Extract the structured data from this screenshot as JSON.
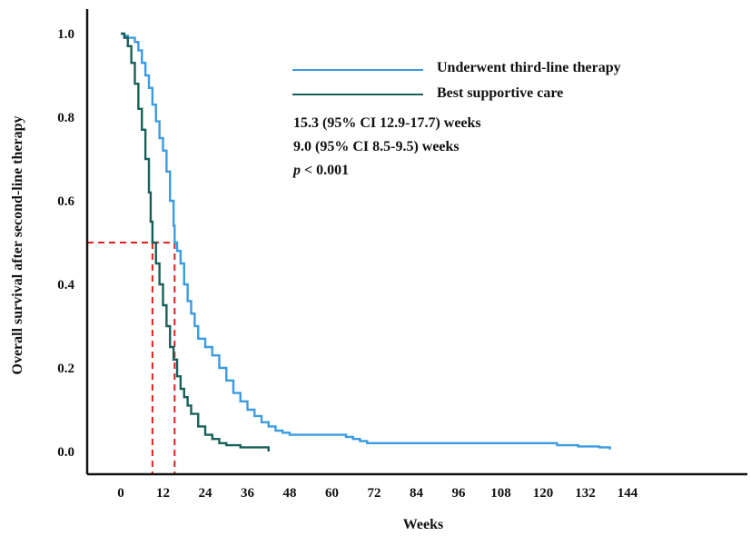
{
  "chart_data": {
    "type": "line",
    "title": "",
    "xlabel": "Weeks",
    "ylabel": "Overall survival after second-line therapy",
    "xlim": [
      -6,
      146
    ],
    "ylim": [
      0,
      1.0
    ],
    "x_ticks": [
      0,
      12,
      24,
      36,
      48,
      60,
      72,
      84,
      96,
      108,
      120,
      132,
      144
    ],
    "y_ticks": [
      0.0,
      0.2,
      0.4,
      0.6,
      0.8,
      1.0
    ],
    "x_tick_labels": [
      "0",
      "12",
      "24",
      "36",
      "48",
      "60",
      "72",
      "84",
      "96",
      "108",
      "120",
      "132",
      "144"
    ],
    "y_tick_labels": [
      "0.0",
      "0.2",
      "0.4",
      "0.6",
      "0.8",
      "1.0"
    ],
    "legend_position": "top-right",
    "series": [
      {
        "name": "Underwent third-line therapy",
        "color": "#3b9be0",
        "points": [
          [
            0,
            1.0
          ],
          [
            1,
            0.995
          ],
          [
            2,
            0.99
          ],
          [
            3,
            0.99
          ],
          [
            4,
            0.98
          ],
          [
            5,
            0.96
          ],
          [
            6,
            0.93
          ],
          [
            7,
            0.9
          ],
          [
            8,
            0.87
          ],
          [
            9,
            0.83
          ],
          [
            10,
            0.79
          ],
          [
            11,
            0.75
          ],
          [
            12,
            0.72
          ],
          [
            13,
            0.67
          ],
          [
            14,
            0.6
          ],
          [
            15,
            0.54
          ],
          [
            15.3,
            0.5
          ],
          [
            16,
            0.48
          ],
          [
            17,
            0.45
          ],
          [
            18,
            0.4
          ],
          [
            19,
            0.36
          ],
          [
            20,
            0.33
          ],
          [
            21,
            0.3
          ],
          [
            22,
            0.27
          ],
          [
            24,
            0.25
          ],
          [
            26,
            0.23
          ],
          [
            28,
            0.2
          ],
          [
            30,
            0.17
          ],
          [
            32,
            0.14
          ],
          [
            34,
            0.12
          ],
          [
            36,
            0.1
          ],
          [
            38,
            0.085
          ],
          [
            40,
            0.07
          ],
          [
            42,
            0.06
          ],
          [
            44,
            0.05
          ],
          [
            46,
            0.045
          ],
          [
            48,
            0.04
          ],
          [
            52,
            0.04
          ],
          [
            56,
            0.04
          ],
          [
            60,
            0.04
          ],
          [
            64,
            0.035
          ],
          [
            66,
            0.03
          ],
          [
            68,
            0.025
          ],
          [
            70,
            0.02
          ],
          [
            72,
            0.02
          ],
          [
            80,
            0.02
          ],
          [
            90,
            0.02
          ],
          [
            100,
            0.02
          ],
          [
            110,
            0.02
          ],
          [
            120,
            0.02
          ],
          [
            124,
            0.015
          ],
          [
            130,
            0.012
          ],
          [
            136,
            0.01
          ],
          [
            139,
            0.005
          ]
        ]
      },
      {
        "name": "Best supportive care",
        "color": "#17605a",
        "points": [
          [
            0,
            1.0
          ],
          [
            1,
            0.99
          ],
          [
            2,
            0.97
          ],
          [
            3,
            0.93
          ],
          [
            4,
            0.88
          ],
          [
            5,
            0.82
          ],
          [
            6,
            0.77
          ],
          [
            7,
            0.7
          ],
          [
            8,
            0.62
          ],
          [
            8.5,
            0.55
          ],
          [
            9,
            0.5
          ],
          [
            10,
            0.45
          ],
          [
            11,
            0.4
          ],
          [
            12,
            0.35
          ],
          [
            13,
            0.3
          ],
          [
            14,
            0.25
          ],
          [
            15,
            0.22
          ],
          [
            16,
            0.18
          ],
          [
            17,
            0.15
          ],
          [
            18,
            0.13
          ],
          [
            19,
            0.11
          ],
          [
            20,
            0.09
          ],
          [
            22,
            0.06
          ],
          [
            24,
            0.04
          ],
          [
            26,
            0.03
          ],
          [
            28,
            0.02
          ],
          [
            30,
            0.015
          ],
          [
            34,
            0.01
          ],
          [
            38,
            0.01
          ],
          [
            40,
            0.01
          ],
          [
            42,
            0.0
          ]
        ]
      }
    ],
    "median_reference": {
      "y": 0.5,
      "x_values": [
        9.0,
        15.3
      ],
      "color": "#e0201c"
    },
    "annotations": [
      "15.3 (95% CI 12.9-17.7) weeks",
      "9.0 (95% CI 8.5-9.5) weeks",
      "p < 0.001"
    ]
  }
}
